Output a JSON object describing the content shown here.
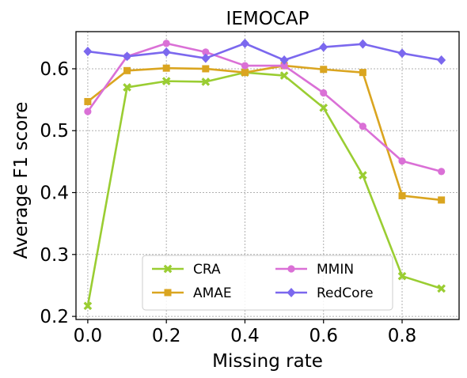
{
  "chart_data": {
    "type": "line",
    "title": "IEMOCAP",
    "xlabel": "Missing rate",
    "ylabel": "Average F1 score",
    "x": [
      0.0,
      0.1,
      0.2,
      0.3,
      0.4,
      0.5,
      0.6,
      0.7,
      0.8,
      0.9
    ],
    "xlim": [
      -0.03,
      0.945
    ],
    "ylim": [
      0.195,
      0.66
    ],
    "xticks": [
      0.0,
      0.2,
      0.4,
      0.6,
      0.8
    ],
    "xtick_labels": [
      "0.0",
      "0.2",
      "0.4",
      "0.6",
      "0.8"
    ],
    "yticks": [
      0.2,
      0.3,
      0.4,
      0.5,
      0.6
    ],
    "ytick_labels": [
      "0.2",
      "0.3",
      "0.4",
      "0.5",
      "0.6"
    ],
    "grid": true,
    "legend_position": "lower-center",
    "series": [
      {
        "name": "CRA",
        "color": "#9acd32",
        "marker": "x",
        "values": [
          0.217,
          0.57,
          0.58,
          0.579,
          0.594,
          0.589,
          0.537,
          0.428,
          0.265,
          0.245
        ]
      },
      {
        "name": "AMAE",
        "color": "#daa520",
        "marker": "square",
        "values": [
          0.547,
          0.597,
          0.601,
          0.6,
          0.594,
          0.605,
          0.599,
          0.594,
          0.395,
          0.388
        ]
      },
      {
        "name": "MMIN",
        "color": "#da70d6",
        "marker": "circle",
        "values": [
          0.531,
          0.62,
          0.641,
          0.627,
          0.605,
          0.605,
          0.561,
          0.507,
          0.451,
          0.434
        ]
      },
      {
        "name": "RedCore",
        "color": "#7b68ee",
        "marker": "diamond",
        "values": [
          0.628,
          0.62,
          0.627,
          0.617,
          0.641,
          0.614,
          0.635,
          0.64,
          0.625,
          0.614
        ]
      }
    ]
  }
}
